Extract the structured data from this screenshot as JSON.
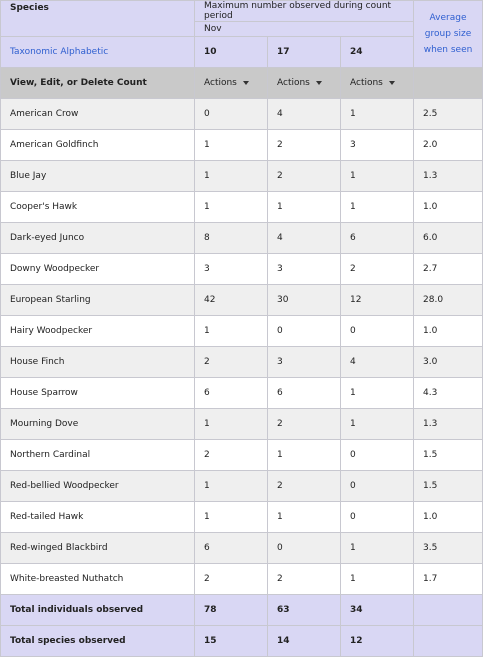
{
  "header": {
    "species_label": "Species",
    "period_label": "Maximum number observed during count period",
    "month": "Nov",
    "sort_link": "Taxonomic Alphabetic",
    "days": [
      "10",
      "17",
      "24"
    ],
    "avg_label": "Average group size when seen"
  },
  "actions_row": {
    "label": "View, Edit, or Delete Count",
    "actions_label": "Actions"
  },
  "rows": [
    {
      "species": "American Crow",
      "counts": [
        "0",
        "4",
        "1"
      ],
      "avg": "2.5"
    },
    {
      "species": "American Goldfinch",
      "counts": [
        "1",
        "2",
        "3"
      ],
      "avg": "2.0"
    },
    {
      "species": "Blue Jay",
      "counts": [
        "1",
        "2",
        "1"
      ],
      "avg": "1.3"
    },
    {
      "species": "Cooper's Hawk",
      "counts": [
        "1",
        "1",
        "1"
      ],
      "avg": "1.0"
    },
    {
      "species": "Dark-eyed Junco",
      "counts": [
        "8",
        "4",
        "6"
      ],
      "avg": "6.0"
    },
    {
      "species": "Downy Woodpecker",
      "counts": [
        "3",
        "3",
        "2"
      ],
      "avg": "2.7"
    },
    {
      "species": "European Starling",
      "counts": [
        "42",
        "30",
        "12"
      ],
      "avg": "28.0"
    },
    {
      "species": "Hairy Woodpecker",
      "counts": [
        "1",
        "0",
        "0"
      ],
      "avg": "1.0"
    },
    {
      "species": "House Finch",
      "counts": [
        "2",
        "3",
        "4"
      ],
      "avg": "3.0"
    },
    {
      "species": "House Sparrow",
      "counts": [
        "6",
        "6",
        "1"
      ],
      "avg": "4.3"
    },
    {
      "species": "Mourning Dove",
      "counts": [
        "1",
        "2",
        "1"
      ],
      "avg": "1.3"
    },
    {
      "species": "Northern Cardinal",
      "counts": [
        "2",
        "1",
        "0"
      ],
      "avg": "1.5"
    },
    {
      "species": "Red-bellied Woodpecker",
      "counts": [
        "1",
        "2",
        "0"
      ],
      "avg": "1.5"
    },
    {
      "species": "Red-tailed Hawk",
      "counts": [
        "1",
        "1",
        "0"
      ],
      "avg": "1.0"
    },
    {
      "species": "Red-winged Blackbird",
      "counts": [
        "6",
        "0",
        "1"
      ],
      "avg": "3.5"
    },
    {
      "species": "White-breasted Nuthatch",
      "counts": [
        "2",
        "2",
        "1"
      ],
      "avg": "1.7"
    }
  ],
  "totals": {
    "individuals_label": "Total individuals observed",
    "individuals": [
      "78",
      "63",
      "34"
    ],
    "species_label": "Total species observed",
    "species": [
      "15",
      "14",
      "12"
    ]
  }
}
